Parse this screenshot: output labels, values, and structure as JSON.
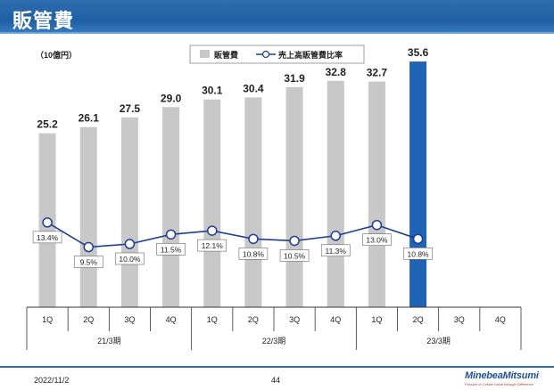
{
  "page": {
    "title": "販管費",
    "date": "2022/11/2",
    "page_number": "44",
    "logo": {
      "name": "MinebeaMitsumi",
      "tagline": "Passion to Create Value through Difference"
    }
  },
  "chart_data": {
    "type": "bar",
    "unit_label": "（10億円）",
    "categories": [
      "1Q",
      "2Q",
      "3Q",
      "4Q",
      "1Q",
      "2Q",
      "3Q",
      "4Q",
      "1Q",
      "2Q",
      "3Q",
      "4Q"
    ],
    "periods": [
      {
        "label": "21/3期",
        "start": 0,
        "end": 3
      },
      {
        "label": "22/3期",
        "start": 4,
        "end": 7
      },
      {
        "label": "23/3期",
        "start": 8,
        "end": 11
      }
    ],
    "series": [
      {
        "name": "販管費",
        "type": "bar",
        "values": [
          25.2,
          26.1,
          27.5,
          29.0,
          30.1,
          30.4,
          31.9,
          32.8,
          32.7,
          35.6,
          null,
          null
        ],
        "labels": [
          "25.2",
          "26.1",
          "27.5",
          "29.0",
          "30.1",
          "30.4",
          "31.9",
          "32.8",
          "32.7",
          "35.6",
          "",
          ""
        ],
        "color": "#c8c8c8",
        "highlight_index": 9,
        "highlight_color": "#1f63b5"
      },
      {
        "name": "売上高販管費比率",
        "type": "line",
        "values": [
          13.4,
          9.5,
          10.0,
          11.5,
          12.1,
          10.8,
          10.5,
          11.3,
          13.0,
          10.8,
          null,
          null
        ],
        "labels": [
          "13.4%",
          "9.5%",
          "10.0%",
          "11.5%",
          "12.1%",
          "10.8%",
          "10.5%",
          "11.3%",
          "13.0%",
          "10.8%",
          "",
          ""
        ],
        "color": "#1f3f8f"
      }
    ],
    "legend": [
      "販管費",
      "売上高販管費比率"
    ],
    "ylim_bar": [
      0,
      40
    ],
    "ylim_line": [
      0,
      40
    ]
  }
}
